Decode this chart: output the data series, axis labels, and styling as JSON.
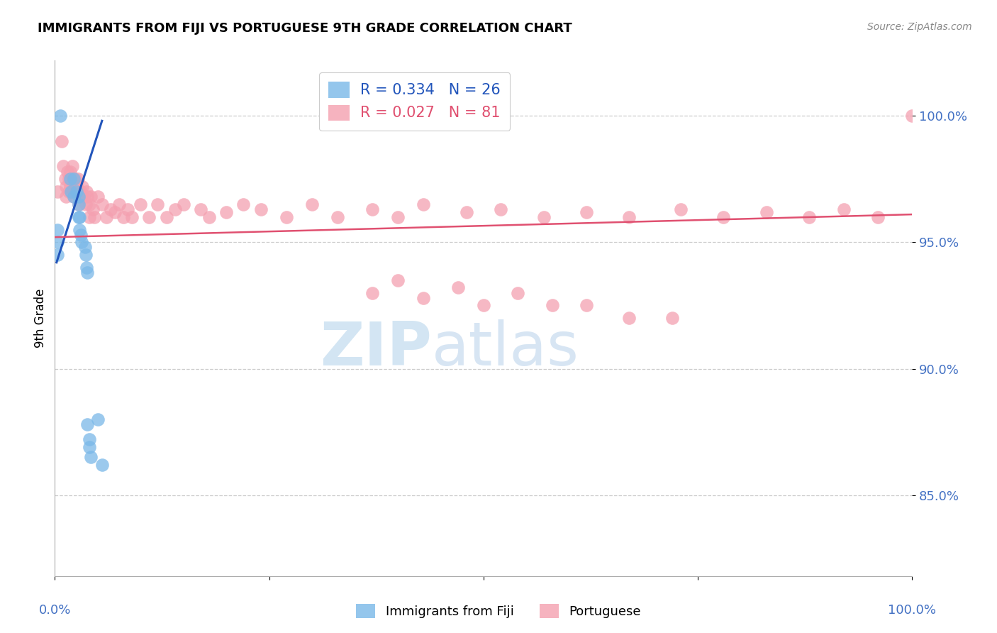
{
  "title": "IMMIGRANTS FROM FIJI VS PORTUGUESE 9TH GRADE CORRELATION CHART",
  "source_text": "Source: ZipAtlas.com",
  "ylabel": "9th Grade",
  "y_tick_labels": [
    "100.0%",
    "95.0%",
    "90.0%",
    "85.0%"
  ],
  "y_tick_values": [
    1.0,
    0.95,
    0.9,
    0.85
  ],
  "y_min": 0.818,
  "y_max": 1.022,
  "x_min": 0.0,
  "x_max": 1.0,
  "fiji_color": "#7ab8e8",
  "portuguese_color": "#f4a0b0",
  "fiji_line_color": "#2255bb",
  "portuguese_line_color": "#e05070",
  "legend_fiji_label": "R = 0.334   N = 26",
  "legend_portuguese_label": "R = 0.027   N = 81",
  "fiji_scatter_x": [
    0.003,
    0.003,
    0.003,
    0.006,
    0.018,
    0.019,
    0.022,
    0.022,
    0.025,
    0.028,
    0.028,
    0.028,
    0.029,
    0.029,
    0.03,
    0.031,
    0.035,
    0.036,
    0.037,
    0.038,
    0.038,
    0.04,
    0.04,
    0.042,
    0.05,
    0.055
  ],
  "fiji_scatter_y": [
    0.955,
    0.95,
    0.945,
    1.0,
    0.975,
    0.97,
    0.975,
    0.968,
    0.97,
    0.968,
    0.965,
    0.96,
    0.96,
    0.955,
    0.953,
    0.95,
    0.948,
    0.945,
    0.94,
    0.938,
    0.878,
    0.872,
    0.869,
    0.865,
    0.88,
    0.862
  ],
  "portuguese_scatter_x": [
    0.003,
    0.008,
    0.01,
    0.012,
    0.013,
    0.013,
    0.015,
    0.016,
    0.016,
    0.018,
    0.018,
    0.02,
    0.021,
    0.022,
    0.022,
    0.024,
    0.025,
    0.026,
    0.027,
    0.028,
    0.028,
    0.03,
    0.031,
    0.032,
    0.034,
    0.036,
    0.037,
    0.038,
    0.04,
    0.04,
    0.042,
    0.044,
    0.046,
    0.05,
    0.055,
    0.06,
    0.065,
    0.07,
    0.075,
    0.08,
    0.085,
    0.09,
    0.1,
    0.11,
    0.12,
    0.13,
    0.14,
    0.15,
    0.17,
    0.18,
    0.2,
    0.22,
    0.24,
    0.27,
    0.3,
    0.33,
    0.37,
    0.4,
    0.43,
    0.48,
    0.52,
    0.57,
    0.62,
    0.67,
    0.73,
    0.78,
    0.83,
    0.88,
    0.92,
    0.96,
    1.0,
    0.37,
    0.4,
    0.43,
    0.47,
    0.5,
    0.54,
    0.58,
    0.62,
    0.67,
    0.72
  ],
  "portuguese_scatter_y": [
    0.97,
    0.99,
    0.98,
    0.975,
    0.972,
    0.968,
    0.978,
    0.975,
    0.97,
    0.978,
    0.972,
    0.98,
    0.975,
    0.972,
    0.968,
    0.975,
    0.97,
    0.972,
    0.975,
    0.97,
    0.965,
    0.97,
    0.968,
    0.972,
    0.968,
    0.965,
    0.97,
    0.968,
    0.965,
    0.96,
    0.968,
    0.963,
    0.96,
    0.968,
    0.965,
    0.96,
    0.963,
    0.962,
    0.965,
    0.96,
    0.963,
    0.96,
    0.965,
    0.96,
    0.965,
    0.96,
    0.963,
    0.965,
    0.963,
    0.96,
    0.962,
    0.965,
    0.963,
    0.96,
    0.965,
    0.96,
    0.963,
    0.96,
    0.965,
    0.962,
    0.963,
    0.96,
    0.962,
    0.96,
    0.963,
    0.96,
    0.962,
    0.96,
    0.963,
    0.96,
    1.0,
    0.93,
    0.935,
    0.928,
    0.932,
    0.925,
    0.93,
    0.925,
    0.925,
    0.92,
    0.92
  ],
  "fiji_trendline_x": [
    0.002,
    0.055
  ],
  "fiji_trendline_y": [
    0.942,
    0.998
  ],
  "portuguese_trendline_x": [
    0.0,
    1.0
  ],
  "portuguese_trendline_y": [
    0.952,
    0.961
  ],
  "watermark_zip": "ZIP",
  "watermark_atlas": "atlas",
  "bottom_legend_fiji": "Immigrants from Fiji",
  "bottom_legend_portuguese": "Portuguese",
  "dashed_grid_color": "#cccccc",
  "tick_label_color": "#4472c4",
  "background_color": "#ffffff"
}
